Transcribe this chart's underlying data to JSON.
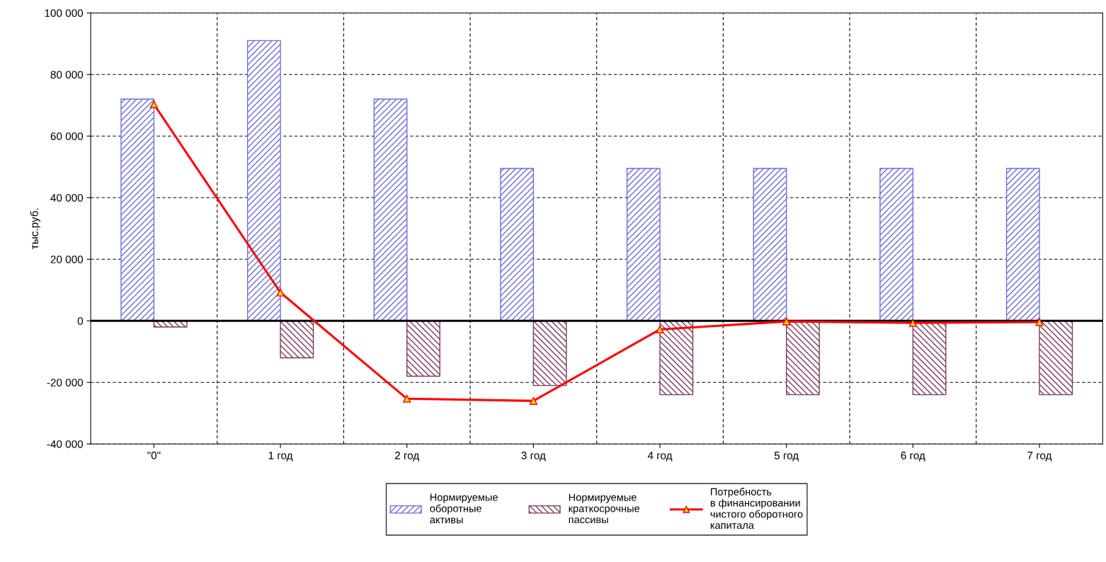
{
  "chart_data": {
    "type": "bar",
    "ylabel": "тыс.руб.",
    "categories": [
      "\"0\"",
      "1 год",
      "2 год",
      "3 год",
      "4 год",
      "5 год",
      "6 год",
      "7 год"
    ],
    "series": [
      {
        "name": "Нормируемые\nоборотные\nактивы",
        "color": "#6a70d8",
        "values": [
          72000,
          91000,
          72000,
          49500,
          49500,
          49500,
          49500,
          49500
        ]
      },
      {
        "name": "Нормируемые\nкраткосрочные\nпассивы",
        "color": "#7a3a60",
        "values": [
          -2000,
          -12000,
          -18000,
          -21000,
          -24000,
          -24000,
          -24000,
          -24000
        ]
      },
      {
        "name": "Потребность\nв финансировании\nчистого оборотного\nкапитала",
        "type": "line",
        "color": "#ff0000",
        "marker": "triangle",
        "values": [
          70300,
          9200,
          -25300,
          -26000,
          -2800,
          -200,
          -700,
          -400
        ]
      }
    ],
    "ylim": [
      -40000,
      100000
    ],
    "yticks": [
      {
        "value": -40000,
        "label": "-40 000"
      },
      {
        "value": -20000,
        "label": "-20 000"
      },
      0,
      {
        "value": 20000,
        "label": "20 000"
      },
      {
        "value": 40000,
        "label": "40 000"
      },
      {
        "value": 60000,
        "label": "60 000"
      },
      {
        "value": 80000,
        "label": "80 000"
      },
      {
        "value": 100000,
        "label": "100 000"
      }
    ],
    "grid": true,
    "legend": "bottom"
  }
}
